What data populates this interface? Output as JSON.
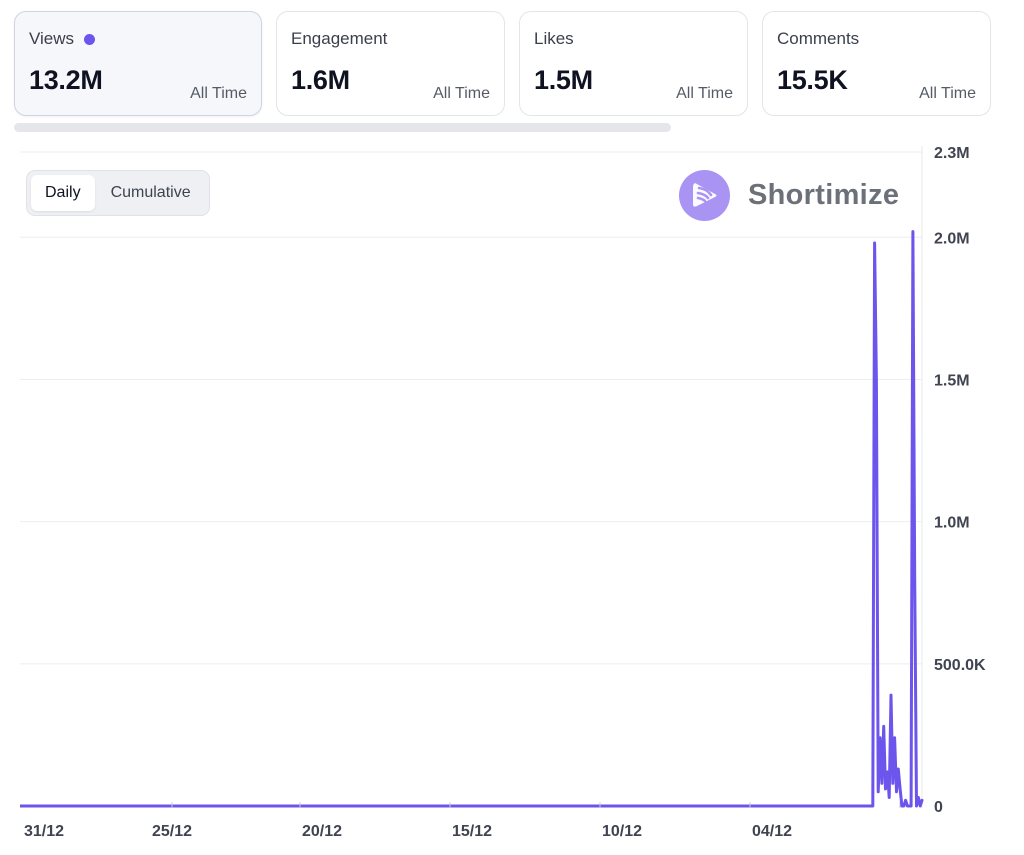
{
  "metrics": [
    {
      "label": "Views",
      "value": "13.2M",
      "period": "All Time",
      "active": true
    },
    {
      "label": "Engagement",
      "value": "1.6M",
      "period": "All Time",
      "active": false
    },
    {
      "label": "Likes",
      "value": "1.5M",
      "period": "All Time",
      "active": false
    },
    {
      "label": "Comments",
      "value": "15.5K",
      "period": "All Time",
      "active": false
    }
  ],
  "toggle": {
    "daily": "Daily",
    "cumulative": "Cumulative",
    "selected": "Daily"
  },
  "brand": {
    "name": "Shortimize",
    "icon": "play-icon",
    "color": "#a993f3"
  },
  "colors": {
    "accent": "#6c55ec",
    "grid": "#eceef2"
  },
  "chart_data": {
    "type": "line",
    "xlabel": "",
    "ylabel": "",
    "y_ticks": [
      "0",
      "500.0K",
      "1.0M",
      "1.5M",
      "2.0M",
      "2.3M"
    ],
    "y_tick_values": [
      0,
      500000,
      1000000,
      1500000,
      2000000,
      2300000
    ],
    "ylim": [
      0,
      2300000
    ],
    "x_ticks": [
      "31/12",
      "25/12",
      "20/12",
      "15/12",
      "10/12",
      "04/12"
    ],
    "grid": true,
    "series": [
      {
        "color": "#6c55ec",
        "x": [
          0,
          1,
          2,
          3,
          4,
          5,
          6,
          7,
          8,
          9,
          10,
          11,
          12,
          13,
          14,
          15,
          16,
          17,
          18,
          19,
          20,
          21,
          22,
          23,
          24,
          25,
          26,
          27,
          28,
          29,
          30,
          31,
          32,
          33,
          34
        ],
        "values": [
          0,
          0,
          0,
          0,
          0,
          0,
          0,
          0,
          1980000,
          1500000,
          50000,
          240000,
          80000,
          280000,
          60000,
          120000,
          30000,
          390000,
          80000,
          240000,
          50000,
          130000,
          60000,
          0,
          0,
          20000,
          0,
          0,
          0,
          2020000,
          800000,
          0,
          30000,
          0,
          20000
        ]
      }
    ]
  }
}
